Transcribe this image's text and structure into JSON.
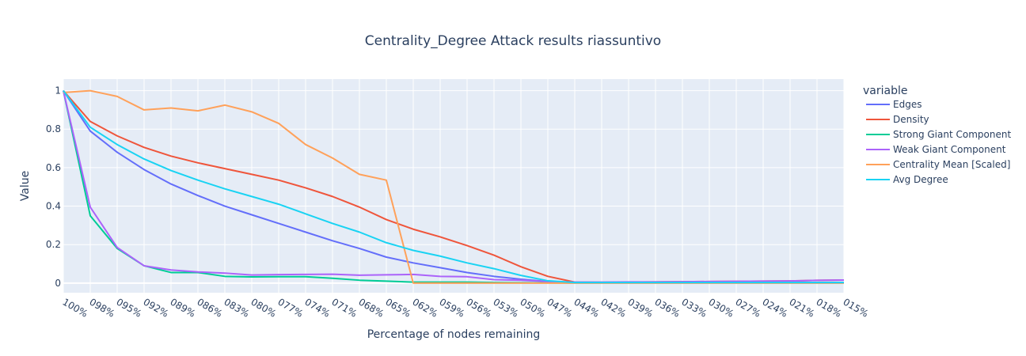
{
  "chart_data": {
    "type": "line",
    "title": "Centrality_Degree Attack results riassuntivo",
    "xlabel": "Percentage of nodes remaining",
    "ylabel": "Value",
    "legend_title": "variable",
    "legend_position": "right",
    "grid": true,
    "categories": [
      "100%",
      "098%",
      "095%",
      "092%",
      "089%",
      "086%",
      "083%",
      "080%",
      "077%",
      "074%",
      "071%",
      "068%",
      "065%",
      "062%",
      "059%",
      "056%",
      "053%",
      "050%",
      "047%",
      "044%",
      "042%",
      "039%",
      "036%",
      "033%",
      "030%",
      "027%",
      "024%",
      "021%",
      "018%",
      "015%"
    ],
    "y_ticks": [
      "0",
      "0.2",
      "0.4",
      "0.6",
      "0.8",
      "1"
    ],
    "y_tick_values": [
      0,
      0.2,
      0.4,
      0.6,
      0.8,
      1
    ],
    "ylim": [
      -0.05,
      1.06
    ],
    "series": [
      {
        "name": "Edges",
        "color": "#636efa",
        "values": [
          1.0,
          0.79,
          0.68,
          0.59,
          0.515,
          0.455,
          0.4,
          0.355,
          0.31,
          0.265,
          0.22,
          0.18,
          0.135,
          0.105,
          0.08,
          0.055,
          0.035,
          0.02,
          0.008,
          0.003,
          0.003,
          0.003,
          0.003,
          0.003,
          0.003,
          0.003,
          0.003,
          0.003,
          0.003,
          0.003
        ]
      },
      {
        "name": "Density",
        "color": "#ef553b",
        "values": [
          1.0,
          0.84,
          0.765,
          0.705,
          0.66,
          0.625,
          0.595,
          0.565,
          0.535,
          0.495,
          0.45,
          0.395,
          0.33,
          0.28,
          0.24,
          0.195,
          0.145,
          0.085,
          0.035,
          0.005,
          0.004,
          0.005,
          0.006,
          0.007,
          0.008,
          0.009,
          0.01,
          0.011,
          0.014,
          0.016
        ]
      },
      {
        "name": "Strong Giant Component",
        "color": "#00cc96",
        "values": [
          1.0,
          0.35,
          0.18,
          0.09,
          0.055,
          0.055,
          0.035,
          0.032,
          0.033,
          0.033,
          0.025,
          0.015,
          0.01,
          0.005,
          0.005,
          0.005,
          0.003,
          0.002,
          0.001,
          0.001,
          0.001,
          0.001,
          0.001,
          0.001,
          0.001,
          0.001,
          0.001,
          0.001,
          0.001,
          0.001
        ]
      },
      {
        "name": "Weak Giant Component",
        "color": "#ab63fa",
        "values": [
          1.0,
          0.395,
          0.185,
          0.09,
          0.068,
          0.058,
          0.052,
          0.042,
          0.044,
          0.045,
          0.046,
          0.041,
          0.043,
          0.045,
          0.035,
          0.033,
          0.018,
          0.015,
          0.008,
          0.005,
          0.005,
          0.006,
          0.006,
          0.007,
          0.008,
          0.009,
          0.01,
          0.011,
          0.014,
          0.016
        ]
      },
      {
        "name": "Centrality Mean [Scaled]",
        "color": "#ffa15a",
        "values": [
          0.99,
          1.0,
          0.97,
          0.9,
          0.91,
          0.895,
          0.925,
          0.89,
          0.83,
          0.72,
          0.65,
          0.565,
          0.535,
          0.0,
          0.0,
          0.0,
          0.0,
          0.0,
          0.0,
          0.0,
          0.0,
          0.0,
          0.0,
          0.0,
          0.0,
          0.0,
          0.0,
          0.0,
          0.0,
          0.0
        ]
      },
      {
        "name": "Avg Degree",
        "color": "#19d3f3",
        "values": [
          1.0,
          0.81,
          0.72,
          0.645,
          0.585,
          0.535,
          0.49,
          0.45,
          0.41,
          0.36,
          0.31,
          0.265,
          0.21,
          0.17,
          0.14,
          0.105,
          0.075,
          0.04,
          0.012,
          0.003,
          0.003,
          0.003,
          0.003,
          0.003,
          0.003,
          0.003,
          0.003,
          0.003,
          0.003,
          0.003
        ]
      }
    ]
  }
}
